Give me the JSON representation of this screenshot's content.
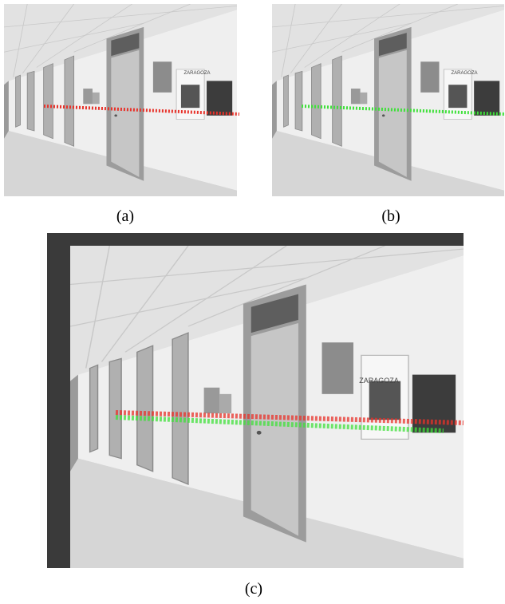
{
  "figure": {
    "panels": [
      {
        "caption": "(a)",
        "poster_text": "ZARAGOZA"
      },
      {
        "caption": "(b)",
        "poster_text": "ZARAGOZA"
      },
      {
        "caption": "(c)",
        "poster_text": "ZARAGOZA"
      }
    ]
  }
}
